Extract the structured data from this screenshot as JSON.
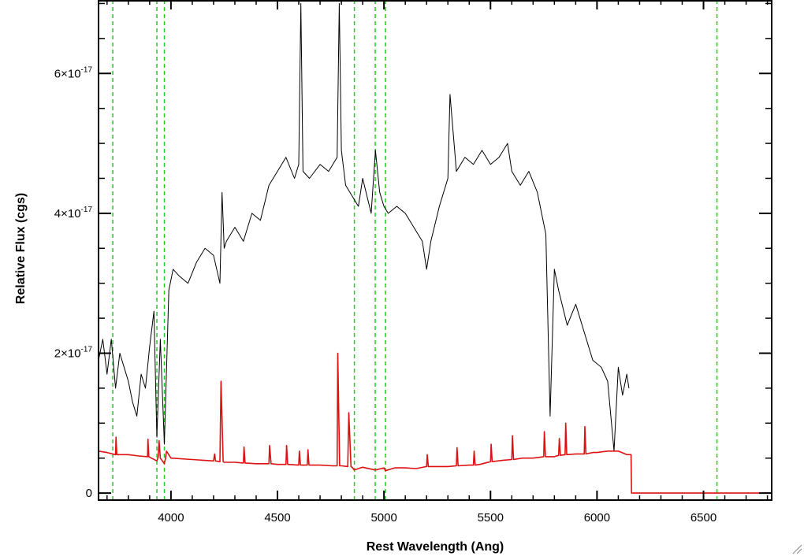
{
  "chart_data": {
    "type": "line",
    "title": "",
    "xlabel": "Rest Wavelength (Ang)",
    "ylabel": "Relative Flux (cgs)",
    "xlim": [
      3660,
      6820
    ],
    "ylim": [
      -1e-18,
      7.05e-17
    ],
    "grid": false,
    "x_ticks": [
      {
        "value": 4000,
        "label": "4000"
      },
      {
        "value": 4500,
        "label": "4500"
      },
      {
        "value": 5000,
        "label": "5000"
      },
      {
        "value": 5500,
        "label": "5500"
      },
      {
        "value": 6000,
        "label": "6000"
      },
      {
        "value": 6500,
        "label": "6500"
      }
    ],
    "y_ticks": [
      {
        "value": 0,
        "label": "0",
        "base": "0",
        "exp": ""
      },
      {
        "value": 2e-17,
        "label": "2×10^-17",
        "base": "2×10",
        "exp": "-17"
      },
      {
        "value": 4e-17,
        "label": "4×10^-17",
        "base": "4×10",
        "exp": "-17"
      },
      {
        "value": 6e-17,
        "label": "6×10^-17",
        "base": "6×10",
        "exp": "-17"
      }
    ],
    "vertical_lines": {
      "color": "#22cc22",
      "style": "dashed",
      "x": [
        3727,
        3934,
        3969,
        4861,
        4959,
        5007,
        6563
      ]
    },
    "series": [
      {
        "color": "#000000",
        "role": "observed spectrum",
        "x": [
          3660,
          3680,
          3700,
          3720,
          3740,
          3760,
          3780,
          3800,
          3820,
          3840,
          3860,
          3880,
          3900,
          3920,
          3934,
          3950,
          3969,
          3990,
          4010,
          4040,
          4080,
          4120,
          4160,
          4200,
          4230,
          4240,
          4250,
          4260,
          4300,
          4340,
          4380,
          4420,
          4460,
          4500,
          4540,
          4580,
          4600,
          4610,
          4620,
          4650,
          4700,
          4740,
          4780,
          4790,
          4800,
          4820,
          4860,
          4880,
          4900,
          4940,
          4960,
          4980,
          5000,
          5020,
          5060,
          5100,
          5140,
          5180,
          5200,
          5220,
          5260,
          5300,
          5310,
          5340,
          5380,
          5420,
          5460,
          5500,
          5540,
          5580,
          5600,
          5640,
          5680,
          5720,
          5760,
          5780,
          5800,
          5820,
          5860,
          5900,
          5940,
          5980,
          6020,
          6050,
          6080,
          6100,
          6120,
          6140,
          6150
        ],
        "y": [
          1.9e-17,
          2.2e-17,
          1.7e-17,
          2.2e-17,
          1.5e-17,
          2e-17,
          1.8e-17,
          1.6e-17,
          1.3e-17,
          1.1e-17,
          1.7e-17,
          1.5e-17,
          2.1e-17,
          2.6e-17,
          8e-18,
          2.2e-17,
          7e-18,
          2.9e-17,
          3.2e-17,
          3.1e-17,
          3e-17,
          3.3e-17,
          3.5e-17,
          3.4e-17,
          3e-17,
          4.3e-17,
          3.5e-17,
          3.6e-17,
          3.8e-17,
          3.6e-17,
          4e-17,
          3.9e-17,
          4.4e-17,
          4.6e-17,
          4.8e-17,
          4.5e-17,
          4.7e-17,
          7e-17,
          4.6e-17,
          4.5e-17,
          4.7e-17,
          4.6e-17,
          4.8e-17,
          7e-17,
          4.9e-17,
          4.4e-17,
          4.2e-17,
          4.1e-17,
          4.5e-17,
          4e-17,
          4.9e-17,
          4.3e-17,
          4.1e-17,
          4e-17,
          4.1e-17,
          4e-17,
          3.8e-17,
          3.6e-17,
          3.2e-17,
          3.6e-17,
          4.1e-17,
          4.5e-17,
          5.7e-17,
          4.6e-17,
          4.8e-17,
          4.7e-17,
          4.9e-17,
          4.7e-17,
          4.8e-17,
          5e-17,
          4.6e-17,
          4.4e-17,
          4.6e-17,
          4.3e-17,
          3.7e-17,
          1.1e-17,
          3.2e-17,
          2.9e-17,
          2.4e-17,
          2.7e-17,
          2.3e-17,
          1.9e-17,
          1.8e-17,
          1.6e-17,
          6e-18,
          1.8e-17,
          1.4e-17,
          1.7e-17,
          1.5e-17
        ]
      },
      {
        "color": "#dd1111",
        "role": "model / error spectrum",
        "x": [
          3660,
          3700,
          3740,
          3742,
          3746,
          3800,
          3850,
          3890,
          3892,
          3896,
          3934,
          3940,
          3944,
          3950,
          3969,
          3975,
          3979,
          4000,
          4100,
          4200,
          4205,
          4209,
          4230,
          4235,
          4245,
          4250,
          4300,
          4340,
          4343,
          4348,
          4400,
          4460,
          4463,
          4470,
          4500,
          4540,
          4543,
          4548,
          4600,
          4603,
          4608,
          4640,
          4643,
          4648,
          4700,
          4760,
          4780,
          4783,
          4792,
          4800,
          4830,
          4835,
          4845,
          4850,
          4861,
          4900,
          4959,
          5000,
          5007,
          5050,
          5100,
          5150,
          5200,
          5203,
          5208,
          5250,
          5300,
          5340,
          5343,
          5348,
          5400,
          5420,
          5423,
          5428,
          5450,
          5500,
          5503,
          5508,
          5560,
          5600,
          5603,
          5608,
          5650,
          5700,
          5750,
          5753,
          5758,
          5800,
          5820,
          5823,
          5828,
          5850,
          5853,
          5858,
          5900,
          5940,
          5943,
          5948,
          5980,
          6000,
          6050,
          6100,
          6140,
          6150,
          6160,
          6162,
          6300,
          6500,
          6700,
          6820
        ],
        "y": [
          6e-18,
          5.8e-18,
          5.5e-18,
          8e-18,
          5.5e-18,
          5.5e-18,
          5.3e-18,
          5.2e-18,
          7.7e-18,
          5.2e-18,
          4.6e-18,
          5.2e-18,
          7.5e-18,
          5e-18,
          4.2e-18,
          5e-18,
          6e-18,
          5e-18,
          4.8e-18,
          4.6e-18,
          5.6e-18,
          4.6e-18,
          4.5e-18,
          1.6e-17,
          4.5e-18,
          4.4e-18,
          4.4e-18,
          4.3e-18,
          6.6e-18,
          4.3e-18,
          4.2e-18,
          4.2e-18,
          6.8e-18,
          4.2e-18,
          4.1e-18,
          4.1e-18,
          6.8e-18,
          4.1e-18,
          4e-18,
          6e-18,
          4e-18,
          4e-18,
          6.2e-18,
          4e-18,
          4e-18,
          3.9e-18,
          3.9e-18,
          2e-17,
          3.9e-18,
          3.9e-18,
          3.8e-18,
          1.15e-17,
          3.8e-18,
          3.7e-18,
          3.3e-18,
          3.7e-18,
          3.3e-18,
          3.6e-18,
          3.2e-18,
          3.6e-18,
          3.6e-18,
          3.5e-18,
          3.8e-18,
          5.5e-18,
          3.8e-18,
          3.8e-18,
          3.8e-18,
          3.9e-18,
          6.5e-18,
          3.9e-18,
          4e-18,
          4e-18,
          6e-18,
          4e-18,
          4.1e-18,
          4.5e-18,
          7e-18,
          4.5e-18,
          4.7e-18,
          4.8e-18,
          8.2e-18,
          4.8e-18,
          5e-18,
          5e-18,
          5.2e-18,
          8.8e-18,
          5.2e-18,
          5.2e-18,
          5.4e-18,
          7.8e-18,
          5.4e-18,
          5.5e-18,
          1e-17,
          5.5e-18,
          5.6e-18,
          5.6e-18,
          9.5e-18,
          5.6e-18,
          5.8e-18,
          5.8e-18,
          6e-18,
          6e-18,
          5.5e-18,
          5.5e-18,
          5.5e-18,
          0.0,
          0.0,
          0.0,
          0.0,
          0.0
        ]
      }
    ]
  }
}
